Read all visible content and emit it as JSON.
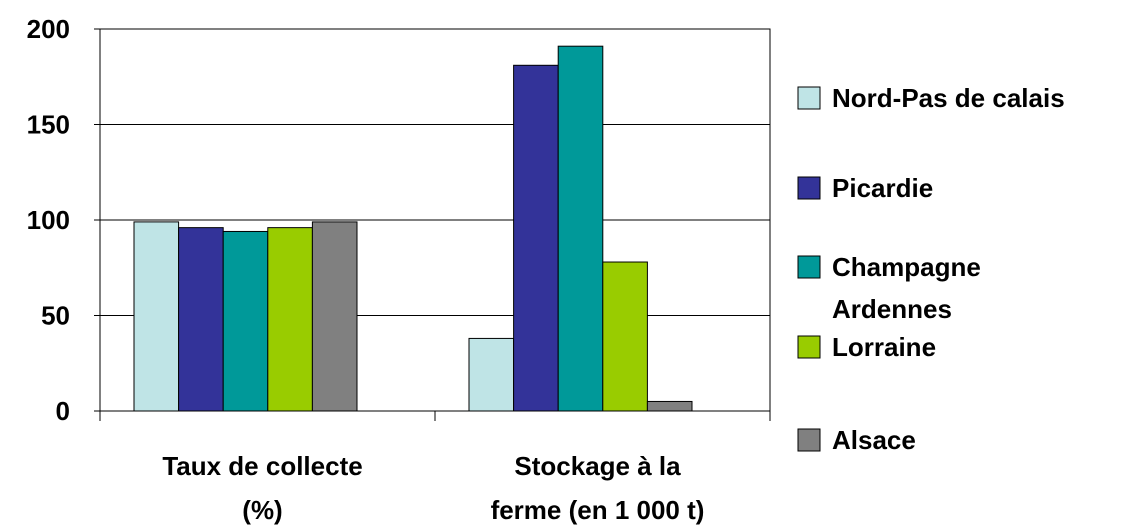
{
  "chart_data": {
    "type": "bar",
    "categories": [
      [
        "Taux de collecte",
        "(%)"
      ],
      [
        "Stockage à la",
        "ferme (en 1 000 t)"
      ]
    ],
    "series": [
      {
        "name": [
          "Nord-Pas de calais"
        ],
        "color": "#bfe4e6",
        "values": [
          99,
          38
        ]
      },
      {
        "name": [
          "Picardie"
        ],
        "color": "#333399",
        "values": [
          96,
          181
        ]
      },
      {
        "name": [
          "Champagne",
          "Ardennes"
        ],
        "color": "#009999",
        "values": [
          94,
          191
        ]
      },
      {
        "name": [
          "Lorraine"
        ],
        "color": "#99cc00",
        "values": [
          96,
          78
        ]
      },
      {
        "name": [
          "Alsace"
        ],
        "color": "#808080",
        "values": [
          99,
          5
        ]
      }
    ],
    "yticks": [
      "0",
      "50",
      "100",
      "150",
      "200"
    ],
    "ylim": [
      0,
      200
    ],
    "grid": true,
    "legend": "right"
  }
}
